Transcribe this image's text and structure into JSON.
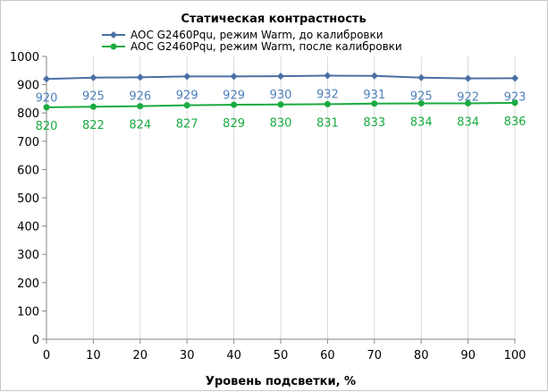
{
  "chart_data": {
    "type": "line",
    "title": "Статическая контрастность",
    "xlabel": "Уровень подсветки, %",
    "ylabel": "",
    "x": [
      0,
      10,
      20,
      30,
      40,
      50,
      60,
      70,
      80,
      90,
      100
    ],
    "xlim": [
      0,
      100
    ],
    "ylim": [
      0,
      1000
    ],
    "xticks": [
      "0",
      "10",
      "20",
      "30",
      "40",
      "50",
      "60",
      "70",
      "80",
      "90",
      "100"
    ],
    "yticks": [
      "0",
      "100",
      "200",
      "300",
      "400",
      "500",
      "600",
      "700",
      "800",
      "900",
      "1000"
    ],
    "grid": "vertical",
    "legend_position": "top",
    "series": [
      {
        "name": "AOC G2460Pqu,  режим Warm,  до калибровки",
        "values": [
          920,
          925,
          926,
          929,
          929,
          930,
          932,
          931,
          925,
          922,
          923
        ],
        "color": "#4a6fa5",
        "label_color": "#4f81bd",
        "marker": "diamond"
      },
      {
        "name": "AOC G2460Pqu,  режим Warm,  после калибровки",
        "values": [
          820,
          822,
          824,
          827,
          829,
          830,
          831,
          833,
          834,
          834,
          836
        ],
        "color": "#1aab40",
        "label_color": "#1aab40",
        "marker": "circle"
      }
    ]
  }
}
